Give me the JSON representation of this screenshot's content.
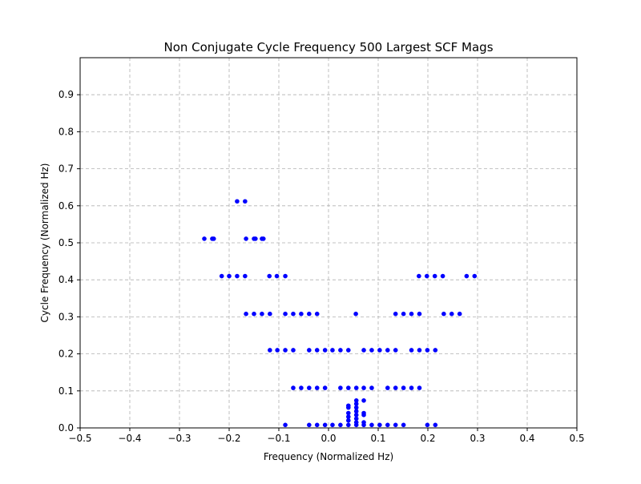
{
  "chart_data": {
    "type": "scatter",
    "title": "Non Conjugate Cycle Frequency 500 Largest SCF Mags",
    "xlabel": "Frequency (Normalized Hz)",
    "ylabel": "Cycle Frequency (Normalized Hz)",
    "xlim": [
      -0.5,
      0.5
    ],
    "ylim": [
      0,
      1.0
    ],
    "xticks": [
      -0.5,
      -0.4,
      -0.3,
      -0.2,
      -0.1,
      0.0,
      0.1,
      0.2,
      0.3,
      0.4,
      0.5
    ],
    "xtick_labels": [
      "−0.5",
      "−0.4",
      "−0.3",
      "−0.2",
      "−0.1",
      "0.0",
      "0.1",
      "0.2",
      "0.3",
      "0.4",
      "0.5"
    ],
    "yticks": [
      0.0,
      0.1,
      0.2,
      0.3,
      0.4,
      0.5,
      0.6,
      0.7,
      0.8,
      0.9
    ],
    "ytick_labels": [
      "0.0",
      "0.1",
      "0.2",
      "0.3",
      "0.4",
      "0.5",
      "0.6",
      "0.7",
      "0.8",
      "0.9"
    ],
    "grid": true,
    "marker_color": "#0000ff",
    "points": [
      [
        -0.184,
        0.612
      ],
      [
        -0.168,
        0.612
      ],
      [
        -0.25,
        0.511
      ],
      [
        -0.234,
        0.511
      ],
      [
        -0.231,
        0.511
      ],
      [
        -0.166,
        0.511
      ],
      [
        -0.15,
        0.511
      ],
      [
        -0.147,
        0.511
      ],
      [
        -0.134,
        0.511
      ],
      [
        -0.131,
        0.511
      ],
      [
        -0.215,
        0.41
      ],
      [
        -0.2,
        0.41
      ],
      [
        -0.184,
        0.41
      ],
      [
        -0.168,
        0.41
      ],
      [
        -0.119,
        0.41
      ],
      [
        -0.104,
        0.41
      ],
      [
        -0.087,
        0.41
      ],
      [
        0.182,
        0.41
      ],
      [
        0.198,
        0.41
      ],
      [
        0.214,
        0.41
      ],
      [
        0.23,
        0.41
      ],
      [
        0.278,
        0.41
      ],
      [
        0.294,
        0.41
      ],
      [
        -0.166,
        0.308
      ],
      [
        -0.15,
        0.308
      ],
      [
        -0.134,
        0.308
      ],
      [
        -0.118,
        0.308
      ],
      [
        -0.087,
        0.308
      ],
      [
        -0.071,
        0.308
      ],
      [
        -0.055,
        0.308
      ],
      [
        -0.039,
        0.308
      ],
      [
        -0.023,
        0.308
      ],
      [
        0.055,
        0.308
      ],
      [
        0.135,
        0.308
      ],
      [
        0.151,
        0.308
      ],
      [
        0.167,
        0.308
      ],
      [
        0.183,
        0.308
      ],
      [
        0.232,
        0.308
      ],
      [
        0.248,
        0.308
      ],
      [
        0.264,
        0.308
      ],
      [
        -0.118,
        0.21
      ],
      [
        -0.103,
        0.21
      ],
      [
        -0.087,
        0.21
      ],
      [
        -0.071,
        0.21
      ],
      [
        -0.039,
        0.21
      ],
      [
        -0.023,
        0.21
      ],
      [
        -0.007,
        0.21
      ],
      [
        0.008,
        0.21
      ],
      [
        0.024,
        0.21
      ],
      [
        0.04,
        0.21
      ],
      [
        0.071,
        0.21
      ],
      [
        0.087,
        0.21
      ],
      [
        0.103,
        0.21
      ],
      [
        0.119,
        0.21
      ],
      [
        0.135,
        0.21
      ],
      [
        0.167,
        0.21
      ],
      [
        0.183,
        0.21
      ],
      [
        0.199,
        0.21
      ],
      [
        0.215,
        0.21
      ],
      [
        -0.071,
        0.108
      ],
      [
        -0.055,
        0.108
      ],
      [
        -0.039,
        0.108
      ],
      [
        -0.023,
        0.108
      ],
      [
        -0.007,
        0.108
      ],
      [
        0.024,
        0.108
      ],
      [
        0.04,
        0.108
      ],
      [
        0.056,
        0.108
      ],
      [
        0.071,
        0.108
      ],
      [
        0.087,
        0.108
      ],
      [
        0.119,
        0.108
      ],
      [
        0.135,
        0.108
      ],
      [
        0.151,
        0.108
      ],
      [
        0.167,
        0.108
      ],
      [
        0.183,
        0.108
      ],
      [
        -0.087,
        0.008
      ],
      [
        -0.039,
        0.008
      ],
      [
        -0.023,
        0.008
      ],
      [
        -0.007,
        0.008
      ],
      [
        0.008,
        0.008
      ],
      [
        0.024,
        0.008
      ],
      [
        0.04,
        0.008
      ],
      [
        0.056,
        0.008
      ],
      [
        0.071,
        0.008
      ],
      [
        0.087,
        0.008
      ],
      [
        0.103,
        0.008
      ],
      [
        0.119,
        0.008
      ],
      [
        0.135,
        0.008
      ],
      [
        0.151,
        0.008
      ],
      [
        0.199,
        0.008
      ],
      [
        0.215,
        0.008
      ],
      [
        0.04,
        0.02
      ],
      [
        0.04,
        0.03
      ],
      [
        0.04,
        0.04
      ],
      [
        0.04,
        0.055
      ],
      [
        0.04,
        0.06
      ],
      [
        0.056,
        0.015
      ],
      [
        0.056,
        0.025
      ],
      [
        0.056,
        0.035
      ],
      [
        0.056,
        0.045
      ],
      [
        0.056,
        0.055
      ],
      [
        0.056,
        0.065
      ],
      [
        0.056,
        0.074
      ],
      [
        0.071,
        0.015
      ],
      [
        0.071,
        0.035
      ],
      [
        0.071,
        0.04
      ],
      [
        0.071,
        0.074
      ]
    ]
  }
}
